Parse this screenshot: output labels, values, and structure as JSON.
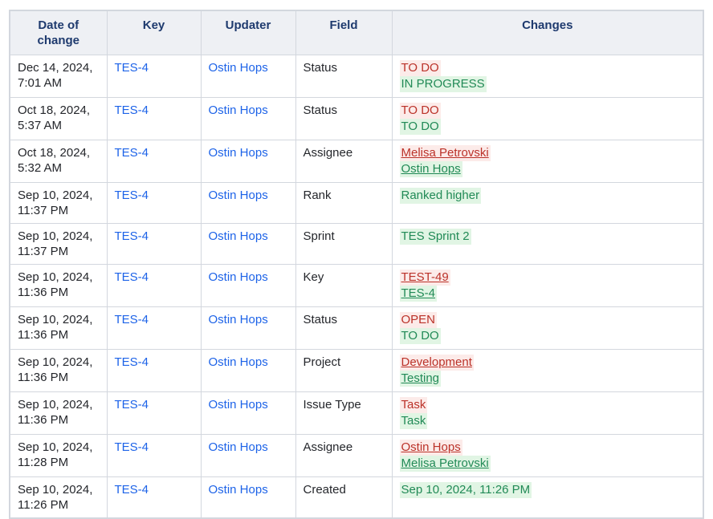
{
  "colors": {
    "header_bg": "#eef0f4",
    "header_text": "#1e3a6e",
    "body_text": "#24262b",
    "link_blue": "#1d63e8",
    "removed_text": "#bb3229",
    "removed_bg": "#fcebe9",
    "added_text": "#218a56",
    "added_bg": "#e1f5e4",
    "border": "#d3d7de",
    "page_bg": "#ffffff"
  },
  "table": {
    "headers": {
      "date": "Date of change",
      "key": "Key",
      "updater": "Updater",
      "field": "Field",
      "changes": "Changes"
    },
    "rows": [
      {
        "date": "Dec 14, 2024, 7:01 AM",
        "key": "TES-4",
        "updater": "Ostin Hops",
        "field": "Status",
        "changes": {
          "removed": "TO DO",
          "removed_link": false,
          "added": "IN PROGRESS",
          "added_link": false
        }
      },
      {
        "date": "Oct 18, 2024, 5:37 AM",
        "key": "TES-4",
        "updater": "Ostin Hops",
        "field": "Status",
        "changes": {
          "removed": "TO DO",
          "removed_link": false,
          "added": "TO DO",
          "added_link": false
        }
      },
      {
        "date": "Oct 18, 2024, 5:32 AM",
        "key": "TES-4",
        "updater": "Ostin Hops",
        "field": "Assignee",
        "changes": {
          "removed": "Melisa Petrovski",
          "removed_link": true,
          "added": "Ostin Hops",
          "added_link": true
        }
      },
      {
        "date": "Sep 10, 2024, 11:37 PM",
        "key": "TES-4",
        "updater": "Ostin Hops",
        "field": "Rank",
        "changes": {
          "added": "Ranked higher",
          "added_link": false
        }
      },
      {
        "date": "Sep 10, 2024, 11:37 PM",
        "key": "TES-4",
        "updater": "Ostin Hops",
        "field": "Sprint",
        "changes": {
          "added": "TES Sprint 2",
          "added_link": false
        }
      },
      {
        "date": "Sep 10, 2024, 11:36 PM",
        "key": "TES-4",
        "updater": "Ostin Hops",
        "field": "Key",
        "changes": {
          "removed": "TEST-49",
          "removed_link": true,
          "added": "TES-4",
          "added_link": true
        }
      },
      {
        "date": "Sep 10, 2024, 11:36 PM",
        "key": "TES-4",
        "updater": "Ostin Hops",
        "field": "Status",
        "changes": {
          "removed": "OPEN",
          "removed_link": false,
          "added": "TO DO",
          "added_link": false
        }
      },
      {
        "date": "Sep 10, 2024, 11:36 PM",
        "key": "TES-4",
        "updater": "Ostin Hops",
        "field": "Project",
        "changes": {
          "removed": "Development",
          "removed_link": true,
          "added": "Testing",
          "added_link": true
        }
      },
      {
        "date": "Sep 10, 2024, 11:36 PM",
        "key": "TES-4",
        "updater": "Ostin Hops",
        "field": "Issue Type",
        "changes": {
          "removed": "Task",
          "removed_link": false,
          "added": "Task",
          "added_link": false
        }
      },
      {
        "date": "Sep 10, 2024, 11:28 PM",
        "key": "TES-4",
        "updater": "Ostin Hops",
        "field": "Assignee",
        "changes": {
          "removed": "Ostin Hops",
          "removed_link": true,
          "added": "Melisa Petrovski",
          "added_link": true
        }
      },
      {
        "date": "Sep 10, 2024, 11:26 PM",
        "key": "TES-4",
        "updater": "Ostin Hops",
        "field": "Created",
        "changes": {
          "added": "Sep 10, 2024, 11:26 PM",
          "added_link": false
        }
      }
    ]
  }
}
